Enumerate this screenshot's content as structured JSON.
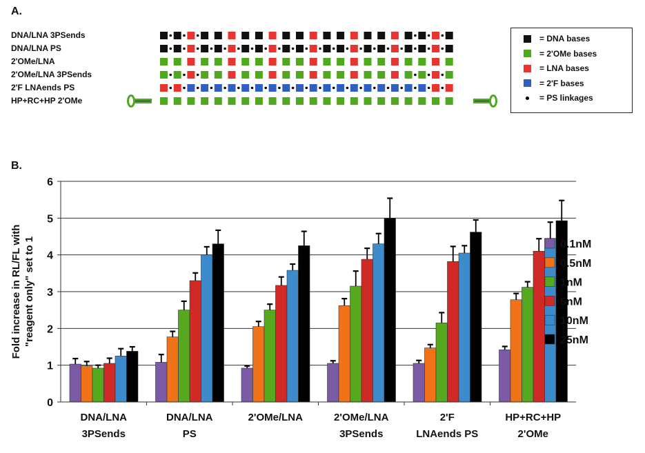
{
  "panel_a": {
    "label": "A.",
    "rows": [
      {
        "name": "DNA/LNA 3PSends",
        "bases": "BBRBBRBBRBBRBBRBBRBBRB",
        "links": "111000000000000000111"
      },
      {
        "name": "DNA/LNA PS",
        "bases": "BBRBBRBBRBBRBBRBBRBBRB",
        "links": "111111111111111111111"
      },
      {
        "name": "2'OMe/LNA",
        "bases": "GGRGGRGGRGGRGGRGGRGGRG",
        "links": "000000000000000000000"
      },
      {
        "name": "2'OMe/LNA 3PSends",
        "bases": "GGRGGRGGRGGRGGRGGRGGRG",
        "links": "111000000000000000111"
      },
      {
        "name": "2'F LNAends PS",
        "bases": "RRFFFFFFFFFFFFFFFFFFRR",
        "links": "111111111111111111111"
      },
      {
        "name": "HP+RC+HP 2'OMe",
        "bases": "GGGGGGGGGGGGGGGGGGGGGG",
        "links": "000000000000000000000",
        "hairpins": true
      }
    ],
    "base_colors": {
      "B": "#111111",
      "G": "#4fa81d",
      "R": "#e8342e",
      "F": "#2f5fc0"
    },
    "legend": [
      {
        "symbol": "square",
        "color": "#111111",
        "text": "=  DNA bases"
      },
      {
        "symbol": "square",
        "color": "#4fa81d",
        "text": "=  2'OMe bases"
      },
      {
        "symbol": "square",
        "color": "#e8342e",
        "text": "=  LNA bases"
      },
      {
        "symbol": "square",
        "color": "#2f5fc0",
        "text": "=  2'F bases"
      },
      {
        "symbol": "dot",
        "color": "#000000",
        "text": "=  PS linkages"
      }
    ]
  },
  "panel_b": {
    "label": "B."
  },
  "chart_data": {
    "type": "bar",
    "ylabel": "Fold increase in RL/FL with \"reagent only\" set to 1",
    "ylabel_lines": [
      "Fold  increase in RL/FL with",
      "\"reagent only\" set to 1"
    ],
    "ylim": [
      0,
      6
    ],
    "yticks": [
      "0",
      "1",
      "2",
      "3",
      "4",
      "5",
      "6"
    ],
    "grid": true,
    "legend_position": "right",
    "categories": [
      [
        "DNA/LNA",
        "3PSends"
      ],
      [
        "DNA/LNA",
        "PS"
      ],
      [
        "2'OMe/LNA",
        ""
      ],
      [
        "2'OMe/LNA",
        "3PSends"
      ],
      [
        "2'F",
        "LNAends PS"
      ],
      [
        "HP+RC+HP",
        "2'OMe"
      ]
    ],
    "series": [
      {
        "name": "0.1nM",
        "color": "#7b5aa6",
        "values": [
          1.03,
          1.08,
          0.92,
          1.05,
          1.05,
          1.42
        ],
        "errors": [
          0.15,
          0.21,
          0.06,
          0.07,
          0.08,
          0.09
        ]
      },
      {
        "name": "0.5nM",
        "color": "#f0731a",
        "values": [
          0.98,
          1.77,
          2.05,
          2.62,
          1.47,
          2.78
        ],
        "errors": [
          0.12,
          0.15,
          0.14,
          0.19,
          0.09,
          0.17
        ]
      },
      {
        "name": "1nM",
        "color": "#56a91e",
        "values": [
          0.92,
          2.5,
          2.5,
          3.15,
          2.15,
          3.12
        ],
        "errors": [
          0.08,
          0.24,
          0.16,
          0.41,
          0.28,
          0.15
        ]
      },
      {
        "name": "5nM",
        "color": "#cf2a26",
        "values": [
          1.05,
          3.3,
          3.17,
          3.88,
          3.82,
          4.1
        ],
        "errors": [
          0.14,
          0.21,
          0.23,
          0.3,
          0.41,
          0.34
        ]
      },
      {
        "name": "10nM",
        "color": "#3d8bcb",
        "values": [
          1.25,
          4.0,
          3.58,
          4.3,
          4.05,
          4.45
        ],
        "errors": [
          0.2,
          0.22,
          0.17,
          0.28,
          0.2,
          0.44
        ]
      },
      {
        "name": "25nM",
        "color": "#000000",
        "values": [
          1.38,
          4.3,
          4.25,
          5.0,
          4.62,
          4.93
        ],
        "errors": [
          0.12,
          0.37,
          0.39,
          0.54,
          0.33,
          0.55
        ]
      }
    ]
  }
}
